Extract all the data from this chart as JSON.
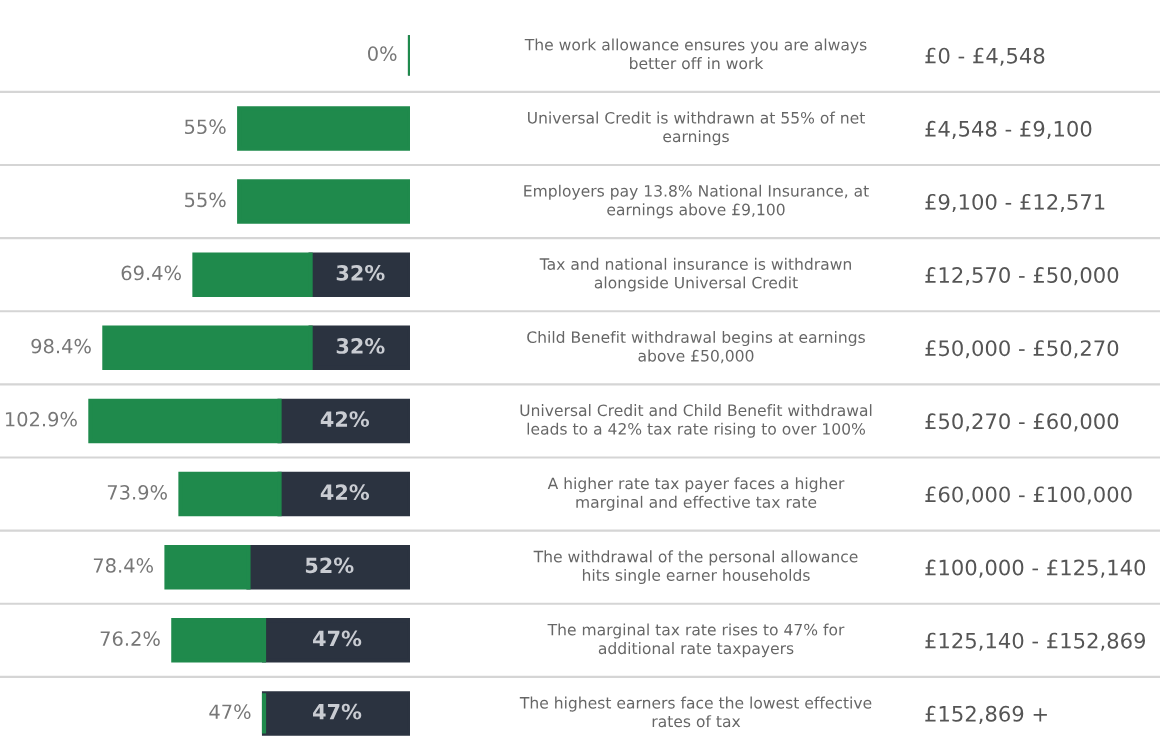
{
  "chart_data": {
    "type": "bar",
    "orientation": "horizontal",
    "stacked": true,
    "categories": [
      "£0 - £4,548",
      "£4,548 - £9,100",
      "£9,100 - £12,571",
      "£12,570 - £50,000",
      "£50,000 - £50,270",
      "£50,270 - £60,000",
      "£60,000 - £100,000",
      "£100,000 - £125,140",
      "£125,140 - £152,869",
      "£152,869 +"
    ],
    "series": [
      {
        "color": "#2b3340",
        "values": [
          0,
          0,
          0,
          32,
          32,
          42,
          42,
          52,
          47,
          47
        ],
        "value_labels": [
          null,
          null,
          null,
          "32%",
          "32%",
          "42%",
          "42%",
          "52%",
          "47%",
          "47%"
        ]
      },
      {
        "color": "#1f8a4c",
        "values": [
          0,
          55,
          55,
          37.4,
          66.4,
          60.9,
          31.9,
          26.4,
          29.2,
          0
        ]
      }
    ],
    "totals": [
      "0%",
      "55%",
      "55%",
      "69.4%",
      "98.4%",
      "102.9%",
      "73.9%",
      "78.4%",
      "76.2%",
      "47%"
    ],
    "annotations": [
      "The work allowance ensures you are always\nbetter off in work",
      "Universal Credit is withdrawn at 55% of net\nearnings",
      "Employers pay 13.8% National Insurance, at\nearnings above £9,100",
      "Tax and national insurance is withdrawn\nalongside Universal Credit",
      "Child Benefit withdrawal begins at earnings\nabove £50,000",
      "Universal Credit and Child Benefit withdrawal\nleads to a 42% tax rate rising to over 100%",
      "A higher rate tax payer faces a higher\nmarginal and effective tax rate",
      "The withdrawal of the personal allowance\nhits single earner households",
      "The marginal tax rate rises to 47% for\nadditional rate taxpayers",
      "The highest earners face the lowest effective\nrates of tax"
    ],
    "xlim": [
      132,
      0
    ],
    "grid": "y",
    "tick_labels": "y"
  }
}
